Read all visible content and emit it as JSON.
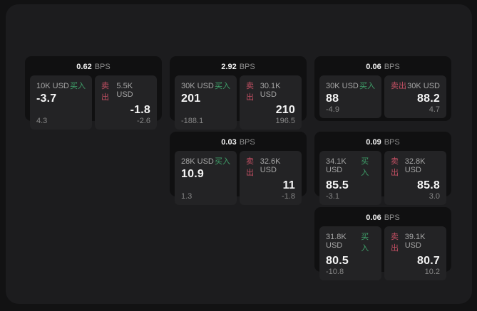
{
  "colors": {
    "page_outer_bg": "#121213",
    "page_inner_bg": "#1c1c1e",
    "card_bg": "#101011",
    "panel_bg": "#232325",
    "buy_accent": "#3fa06a",
    "sell_accent": "#c24f63",
    "value_text": "#f5f5f5",
    "muted_text": "#8f8f8f"
  },
  "labels": {
    "bps_unit": "BPS",
    "buy": "买入",
    "sell": "卖出"
  },
  "cards": [
    {
      "bps": "0.62",
      "buy": {
        "amount": "10K USD",
        "side": "买入",
        "price": "-3.7",
        "delta": "4.3"
      },
      "sell": {
        "side": "卖出",
        "amount": "5.5K USD",
        "price": "-1.8",
        "delta": "-2.6"
      }
    },
    {
      "bps": "2.92",
      "buy": {
        "amount": "30K USD",
        "side": "买入",
        "price": "201",
        "delta": "-188.1"
      },
      "sell": {
        "side": "卖出",
        "amount": "30.1K USD",
        "price": "210",
        "delta": "196.5"
      }
    },
    {
      "bps": "0.06",
      "buy": {
        "amount": "30K USD",
        "side": "买入",
        "price": "88",
        "delta": "-4.9"
      },
      "sell": {
        "side": "卖出",
        "amount": "30K USD",
        "price": "88.2",
        "delta": "4.7"
      }
    },
    {
      "bps": "0.03",
      "buy": {
        "amount": "28K USD",
        "side": "买入",
        "price": "10.9",
        "delta": "1.3"
      },
      "sell": {
        "side": "卖出",
        "amount": "32.6K USD",
        "price": "11",
        "delta": "-1.8"
      }
    },
    {
      "bps": "0.09",
      "buy": {
        "amount": "34.1K USD",
        "side": "买入",
        "price": "85.5",
        "delta": "-3.1"
      },
      "sell": {
        "side": "卖出",
        "amount": "32.8K USD",
        "price": "85.8",
        "delta": "3.0"
      }
    },
    {
      "bps": "0.06",
      "buy": {
        "amount": "31.8K USD",
        "side": "买入",
        "price": "80.5",
        "delta": "-10.8"
      },
      "sell": {
        "side": "卖出",
        "amount": "39.1K USD",
        "price": "80.7",
        "delta": "10.2"
      }
    }
  ]
}
